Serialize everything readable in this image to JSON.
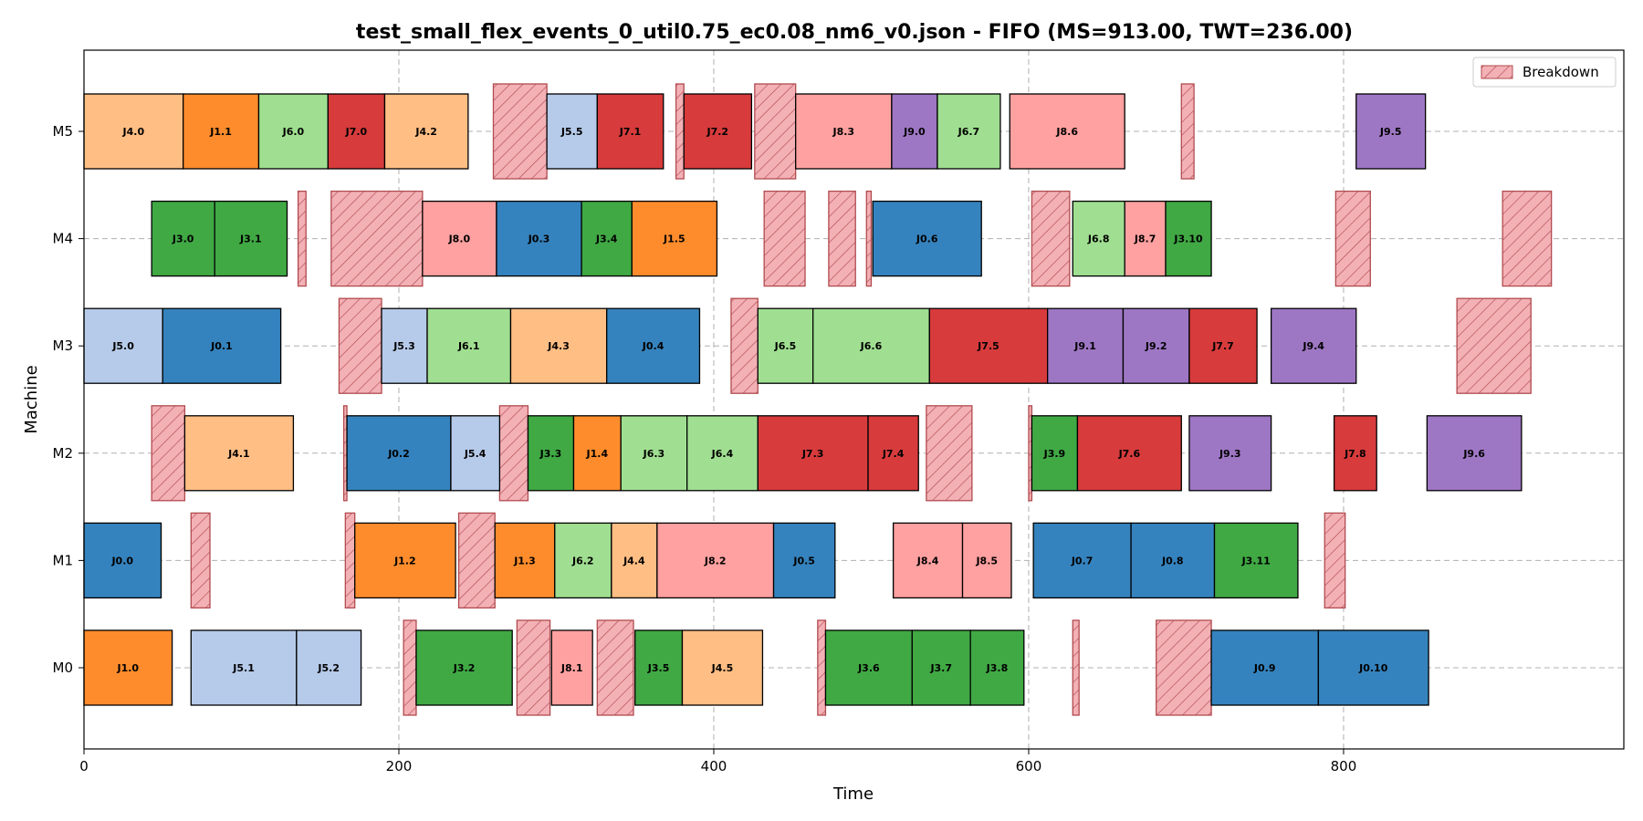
{
  "chart_data": {
    "type": "gantt",
    "title": "test_small_flex_events_0_util0.75_ec0.08_nm6_v0.json - FIFO (MS=913.00, TWT=236.00)",
    "xlabel": "Time",
    "ylabel": "Machine",
    "xlim": [
      0,
      978
    ],
    "xticks": [
      0,
      200,
      400,
      600,
      800
    ],
    "machines": [
      "M0",
      "M1",
      "M2",
      "M3",
      "M4",
      "M5"
    ],
    "grid": true,
    "legend": {
      "position": "top-right",
      "entries": [
        "Breakdown"
      ]
    },
    "job_colors": {
      "J0": "#3583be",
      "J1": "#fe8c2c",
      "J3": "#40a944",
      "J4": "#ffbe84",
      "J5": "#b6cae9",
      "J6": "#a0df91",
      "J7": "#d73b3c",
      "J8": "#ffa1a0",
      "J9": "#9e77c4"
    },
    "breakdown_color": "#f3b1b6",
    "breakdown_edge": "#b14b4f",
    "operations": [
      {
        "machine": "M5",
        "label": "J4.0",
        "job": "J4",
        "start": 0,
        "end": 63
      },
      {
        "machine": "M5",
        "label": "J1.1",
        "job": "J1",
        "start": 63,
        "end": 111
      },
      {
        "machine": "M5",
        "label": "J6.0",
        "job": "J6",
        "start": 111,
        "end": 155
      },
      {
        "machine": "M5",
        "label": "J7.0",
        "job": "J7",
        "start": 155,
        "end": 191
      },
      {
        "machine": "M5",
        "label": "J4.2",
        "job": "J4",
        "start": 191,
        "end": 244
      },
      {
        "machine": "M5",
        "label": "J5.5",
        "job": "J5",
        "start": 294,
        "end": 326
      },
      {
        "machine": "M5",
        "label": "J7.1",
        "job": "J7",
        "start": 326,
        "end": 368
      },
      {
        "machine": "M5",
        "label": "J7.2",
        "job": "J7",
        "start": 381,
        "end": 424
      },
      {
        "machine": "M5",
        "label": "J8.3",
        "job": "J8",
        "start": 452,
        "end": 513
      },
      {
        "machine": "M5",
        "label": "J9.0",
        "job": "J9",
        "start": 513,
        "end": 542
      },
      {
        "machine": "M5",
        "label": "J6.7",
        "job": "J6",
        "start": 542,
        "end": 582
      },
      {
        "machine": "M5",
        "label": "J8.6",
        "job": "J8",
        "start": 588,
        "end": 661
      },
      {
        "machine": "M5",
        "label": "J9.5",
        "job": "J9",
        "start": 808,
        "end": 852
      },
      {
        "machine": "M4",
        "label": "J3.0",
        "job": "J3",
        "start": 43,
        "end": 83
      },
      {
        "machine": "M4",
        "label": "J3.1",
        "job": "J3",
        "start": 83,
        "end": 129
      },
      {
        "machine": "M4",
        "label": "J8.0",
        "job": "J8",
        "start": 215,
        "end": 262
      },
      {
        "machine": "M4",
        "label": "J0.3",
        "job": "J0",
        "start": 262,
        "end": 316
      },
      {
        "machine": "M4",
        "label": "J3.4",
        "job": "J3",
        "start": 316,
        "end": 348
      },
      {
        "machine": "M4",
        "label": "J1.5",
        "job": "J1",
        "start": 348,
        "end": 402
      },
      {
        "machine": "M4",
        "label": "J0.6",
        "job": "J0",
        "start": 501,
        "end": 570
      },
      {
        "machine": "M4",
        "label": "J6.8",
        "job": "J6",
        "start": 628,
        "end": 661
      },
      {
        "machine": "M4",
        "label": "J8.7",
        "job": "J8",
        "start": 661,
        "end": 687
      },
      {
        "machine": "M4",
        "label": "J3.10",
        "job": "J3",
        "start": 687,
        "end": 716
      },
      {
        "machine": "M3",
        "label": "J5.0",
        "job": "J5",
        "start": 0,
        "end": 50
      },
      {
        "machine": "M3",
        "label": "J0.1",
        "job": "J0",
        "start": 50,
        "end": 125
      },
      {
        "machine": "M3",
        "label": "J5.3",
        "job": "J5",
        "start": 189,
        "end": 218
      },
      {
        "machine": "M3",
        "label": "J6.1",
        "job": "J6",
        "start": 218,
        "end": 271
      },
      {
        "machine": "M3",
        "label": "J4.3",
        "job": "J4",
        "start": 271,
        "end": 332
      },
      {
        "machine": "M3",
        "label": "J0.4",
        "job": "J0",
        "start": 332,
        "end": 391
      },
      {
        "machine": "M3",
        "label": "J6.5",
        "job": "J6",
        "start": 428,
        "end": 463
      },
      {
        "machine": "M3",
        "label": "J6.6",
        "job": "J6",
        "start": 463,
        "end": 537
      },
      {
        "machine": "M3",
        "label": "J7.5",
        "job": "J7",
        "start": 537,
        "end": 612
      },
      {
        "machine": "M3",
        "label": "J9.1",
        "job": "J9",
        "start": 612,
        "end": 660
      },
      {
        "machine": "M3",
        "label": "J9.2",
        "job": "J9",
        "start": 660,
        "end": 702
      },
      {
        "machine": "M3",
        "label": "J7.7",
        "job": "J7",
        "start": 702,
        "end": 745
      },
      {
        "machine": "M3",
        "label": "J9.4",
        "job": "J9",
        "start": 754,
        "end": 808
      },
      {
        "machine": "M2",
        "label": "J4.1",
        "job": "J4",
        "start": 64,
        "end": 133
      },
      {
        "machine": "M2",
        "label": "J0.2",
        "job": "J0",
        "start": 167,
        "end": 233
      },
      {
        "machine": "M2",
        "label": "J5.4",
        "job": "J5",
        "start": 233,
        "end": 264
      },
      {
        "machine": "M2",
        "label": "J3.3",
        "job": "J3",
        "start": 282,
        "end": 311
      },
      {
        "machine": "M2",
        "label": "J1.4",
        "job": "J1",
        "start": 311,
        "end": 341
      },
      {
        "machine": "M2",
        "label": "J6.3",
        "job": "J6",
        "start": 341,
        "end": 383
      },
      {
        "machine": "M2",
        "label": "J6.4",
        "job": "J6",
        "start": 383,
        "end": 428
      },
      {
        "machine": "M2",
        "label": "J7.3",
        "job": "J7",
        "start": 428,
        "end": 498
      },
      {
        "machine": "M2",
        "label": "J7.4",
        "job": "J7",
        "start": 498,
        "end": 530
      },
      {
        "machine": "M2",
        "label": "J3.9",
        "job": "J3",
        "start": 602,
        "end": 631
      },
      {
        "machine": "M2",
        "label": "J7.6",
        "job": "J7",
        "start": 631,
        "end": 697
      },
      {
        "machine": "M2",
        "label": "J9.3",
        "job": "J9",
        "start": 702,
        "end": 754
      },
      {
        "machine": "M2",
        "label": "J7.8",
        "job": "J7",
        "start": 794,
        "end": 821
      },
      {
        "machine": "M2",
        "label": "J9.6",
        "job": "J9",
        "start": 853,
        "end": 913
      },
      {
        "machine": "M1",
        "label": "J0.0",
        "job": "J0",
        "start": 0,
        "end": 49
      },
      {
        "machine": "M1",
        "label": "J1.2",
        "job": "J1",
        "start": 172,
        "end": 236
      },
      {
        "machine": "M1",
        "label": "J1.3",
        "job": "J1",
        "start": 261,
        "end": 299
      },
      {
        "machine": "M1",
        "label": "J6.2",
        "job": "J6",
        "start": 299,
        "end": 335
      },
      {
        "machine": "M1",
        "label": "J4.4",
        "job": "J4",
        "start": 335,
        "end": 364
      },
      {
        "machine": "M1",
        "label": "J8.2",
        "job": "J8",
        "start": 364,
        "end": 438
      },
      {
        "machine": "M1",
        "label": "J0.5",
        "job": "J0",
        "start": 438,
        "end": 477
      },
      {
        "machine": "M1",
        "label": "J8.4",
        "job": "J8",
        "start": 514,
        "end": 558
      },
      {
        "machine": "M1",
        "label": "J8.5",
        "job": "J8",
        "start": 558,
        "end": 589
      },
      {
        "machine": "M1",
        "label": "J0.7",
        "job": "J0",
        "start": 603,
        "end": 665
      },
      {
        "machine": "M1",
        "label": "J0.8",
        "job": "J0",
        "start": 665,
        "end": 718
      },
      {
        "machine": "M1",
        "label": "J3.11",
        "job": "J3",
        "start": 718,
        "end": 771
      },
      {
        "machine": "M0",
        "label": "J1.0",
        "job": "J1",
        "start": 0,
        "end": 56
      },
      {
        "machine": "M0",
        "label": "J5.1",
        "job": "J5",
        "start": 68,
        "end": 135
      },
      {
        "machine": "M0",
        "label": "J5.2",
        "job": "J5",
        "start": 135,
        "end": 176
      },
      {
        "machine": "M0",
        "label": "J3.2",
        "job": "J3",
        "start": 211,
        "end": 272
      },
      {
        "machine": "M0",
        "label": "J8.1",
        "job": "J8",
        "start": 297,
        "end": 323
      },
      {
        "machine": "M0",
        "label": "J3.5",
        "job": "J3",
        "start": 350,
        "end": 380
      },
      {
        "machine": "M0",
        "label": "J4.5",
        "job": "J4",
        "start": 380,
        "end": 431
      },
      {
        "machine": "M0",
        "label": "J3.6",
        "job": "J3",
        "start": 471,
        "end": 526
      },
      {
        "machine": "M0",
        "label": "J3.7",
        "job": "J3",
        "start": 526,
        "end": 563
      },
      {
        "machine": "M0",
        "label": "J3.8",
        "job": "J3",
        "start": 563,
        "end": 597
      },
      {
        "machine": "M0",
        "label": "J0.9",
        "job": "J0",
        "start": 716,
        "end": 784
      },
      {
        "machine": "M0",
        "label": "J0.10",
        "job": "J0",
        "start": 784,
        "end": 854
      }
    ],
    "breakdowns": [
      {
        "machine": "M5",
        "start": 260,
        "end": 294
      },
      {
        "machine": "M5",
        "start": 376,
        "end": 381
      },
      {
        "machine": "M5",
        "start": 426,
        "end": 452
      },
      {
        "machine": "M5",
        "start": 697,
        "end": 705
      },
      {
        "machine": "M4",
        "start": 136,
        "end": 141
      },
      {
        "machine": "M4",
        "start": 157,
        "end": 215
      },
      {
        "machine": "M4",
        "start": 432,
        "end": 458
      },
      {
        "machine": "M4",
        "start": 473,
        "end": 490
      },
      {
        "machine": "M4",
        "start": 497,
        "end": 500
      },
      {
        "machine": "M4",
        "start": 602,
        "end": 626
      },
      {
        "machine": "M4",
        "start": 795,
        "end": 817
      },
      {
        "machine": "M4",
        "start": 901,
        "end": 932
      },
      {
        "machine": "M3",
        "start": 162,
        "end": 189
      },
      {
        "machine": "M3",
        "start": 411,
        "end": 428
      },
      {
        "machine": "M3",
        "start": 872,
        "end": 919
      },
      {
        "machine": "M2",
        "start": 43,
        "end": 64
      },
      {
        "machine": "M2",
        "start": 165,
        "end": 167
      },
      {
        "machine": "M2",
        "start": 264,
        "end": 282
      },
      {
        "machine": "M2",
        "start": 535,
        "end": 564
      },
      {
        "machine": "M2",
        "start": 600,
        "end": 602
      },
      {
        "machine": "M1",
        "start": 68,
        "end": 80
      },
      {
        "machine": "M1",
        "start": 166,
        "end": 172
      },
      {
        "machine": "M1",
        "start": 238,
        "end": 261
      },
      {
        "machine": "M1",
        "start": 788,
        "end": 801
      },
      {
        "machine": "M0",
        "start": 203,
        "end": 211
      },
      {
        "machine": "M0",
        "start": 275,
        "end": 296
      },
      {
        "machine": "M0",
        "start": 326,
        "end": 349
      },
      {
        "machine": "M0",
        "start": 466,
        "end": 471
      },
      {
        "machine": "M0",
        "start": 628,
        "end": 632
      },
      {
        "machine": "M0",
        "start": 681,
        "end": 716
      }
    ]
  }
}
